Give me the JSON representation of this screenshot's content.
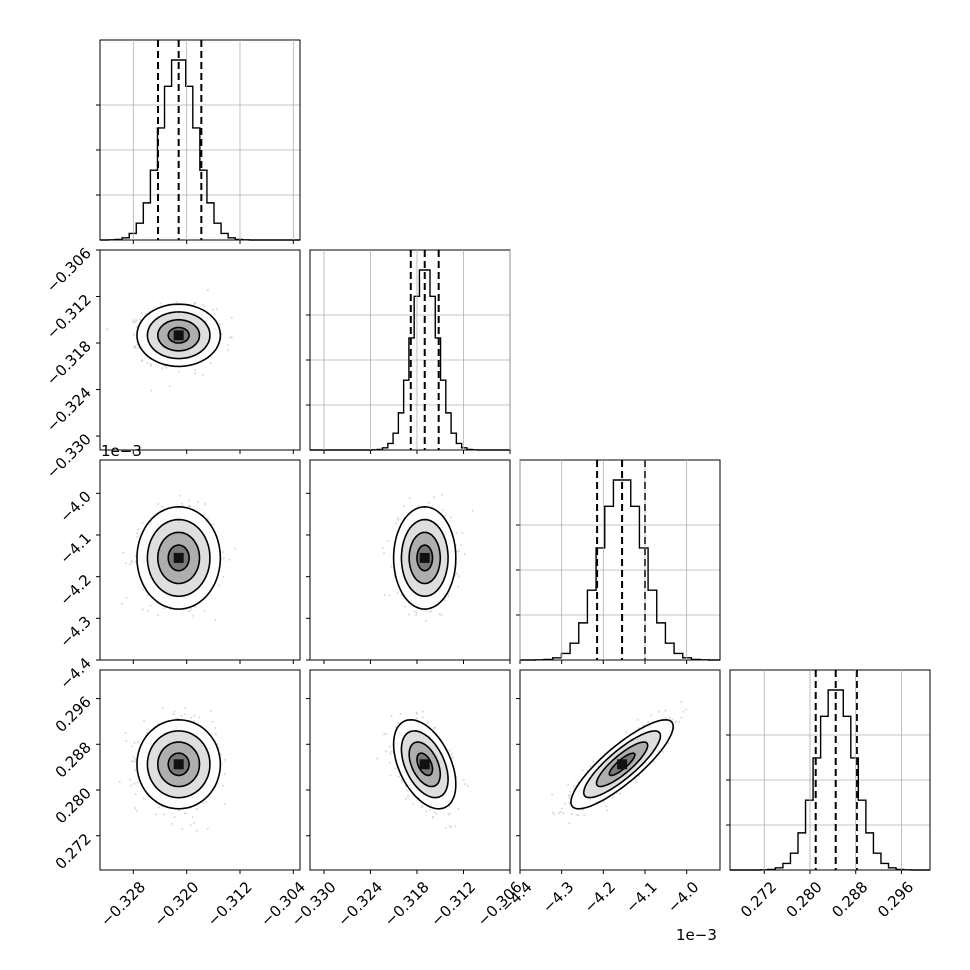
{
  "colors": {
    "background": "#ffffff",
    "line": "#000000",
    "grid": "#b0b0b0",
    "scatter": "#bdbdbd"
  },
  "chart_data": {
    "type": "corner",
    "grid": true,
    "parameters": [
      {
        "range": [
          -0.333,
          -0.303
        ],
        "ticks": [
          -0.328,
          -0.32,
          -0.312,
          -0.304
        ],
        "tick_labels": [
          "−0.328",
          "−0.320",
          "−0.312",
          "−0.304"
        ],
        "hist_mean": -0.3212,
        "hist_sigma": 0.00265,
        "quantiles": [
          -0.3243,
          -0.3212,
          -0.3178
        ],
        "offset_text": ""
      },
      {
        "range": [
          -0.3318,
          -0.306
        ],
        "ticks": [
          -0.33,
          -0.324,
          -0.318,
          -0.312,
          -0.306
        ],
        "tick_labels": [
          "−0.330",
          "−0.324",
          "−0.318",
          "−0.312",
          "−0.306"
        ],
        "hist_mean": -0.317,
        "hist_sigma": 0.0017,
        "quantiles": [
          -0.3188,
          -0.317,
          -0.3152
        ],
        "offset_text": ""
      },
      {
        "range": [
          -4.4,
          -3.92
        ],
        "ticks": [
          -4.4,
          -4.3,
          -4.2,
          -4.1,
          -4.0
        ],
        "tick_labels": [
          "−4.4",
          "−4.3",
          "−4.2",
          "−4.1",
          "−4.0"
        ],
        "hist_mean": -4.155,
        "hist_sigma": 0.052,
        "quantiles": [
          -4.215,
          -4.155,
          -4.1
        ],
        "offset_text": "1e−3"
      },
      {
        "range": [
          0.266,
          0.301
        ],
        "ticks": [
          0.272,
          0.28,
          0.288,
          0.296
        ],
        "tick_labels": [
          "0.272",
          "0.280",
          "0.288",
          "0.296"
        ],
        "hist_mean": 0.2845,
        "hist_sigma": 0.0033,
        "quantiles": [
          0.281,
          0.2845,
          0.2882
        ],
        "offset_text": ""
      }
    ],
    "correlations": [
      {
        "i": 1,
        "j": 0,
        "rho": 0.0
      },
      {
        "i": 2,
        "j": 0,
        "rho": 0.0
      },
      {
        "i": 2,
        "j": 1,
        "rho": 0.0
      },
      {
        "i": 3,
        "j": 0,
        "rho": 0.0
      },
      {
        "i": 3,
        "j": 1,
        "rho": -0.45
      },
      {
        "i": 3,
        "j": 2,
        "rho": 0.85
      }
    ],
    "contour_levels_sigma": [
      0.5,
      1.0,
      1.5,
      2.0
    ]
  }
}
